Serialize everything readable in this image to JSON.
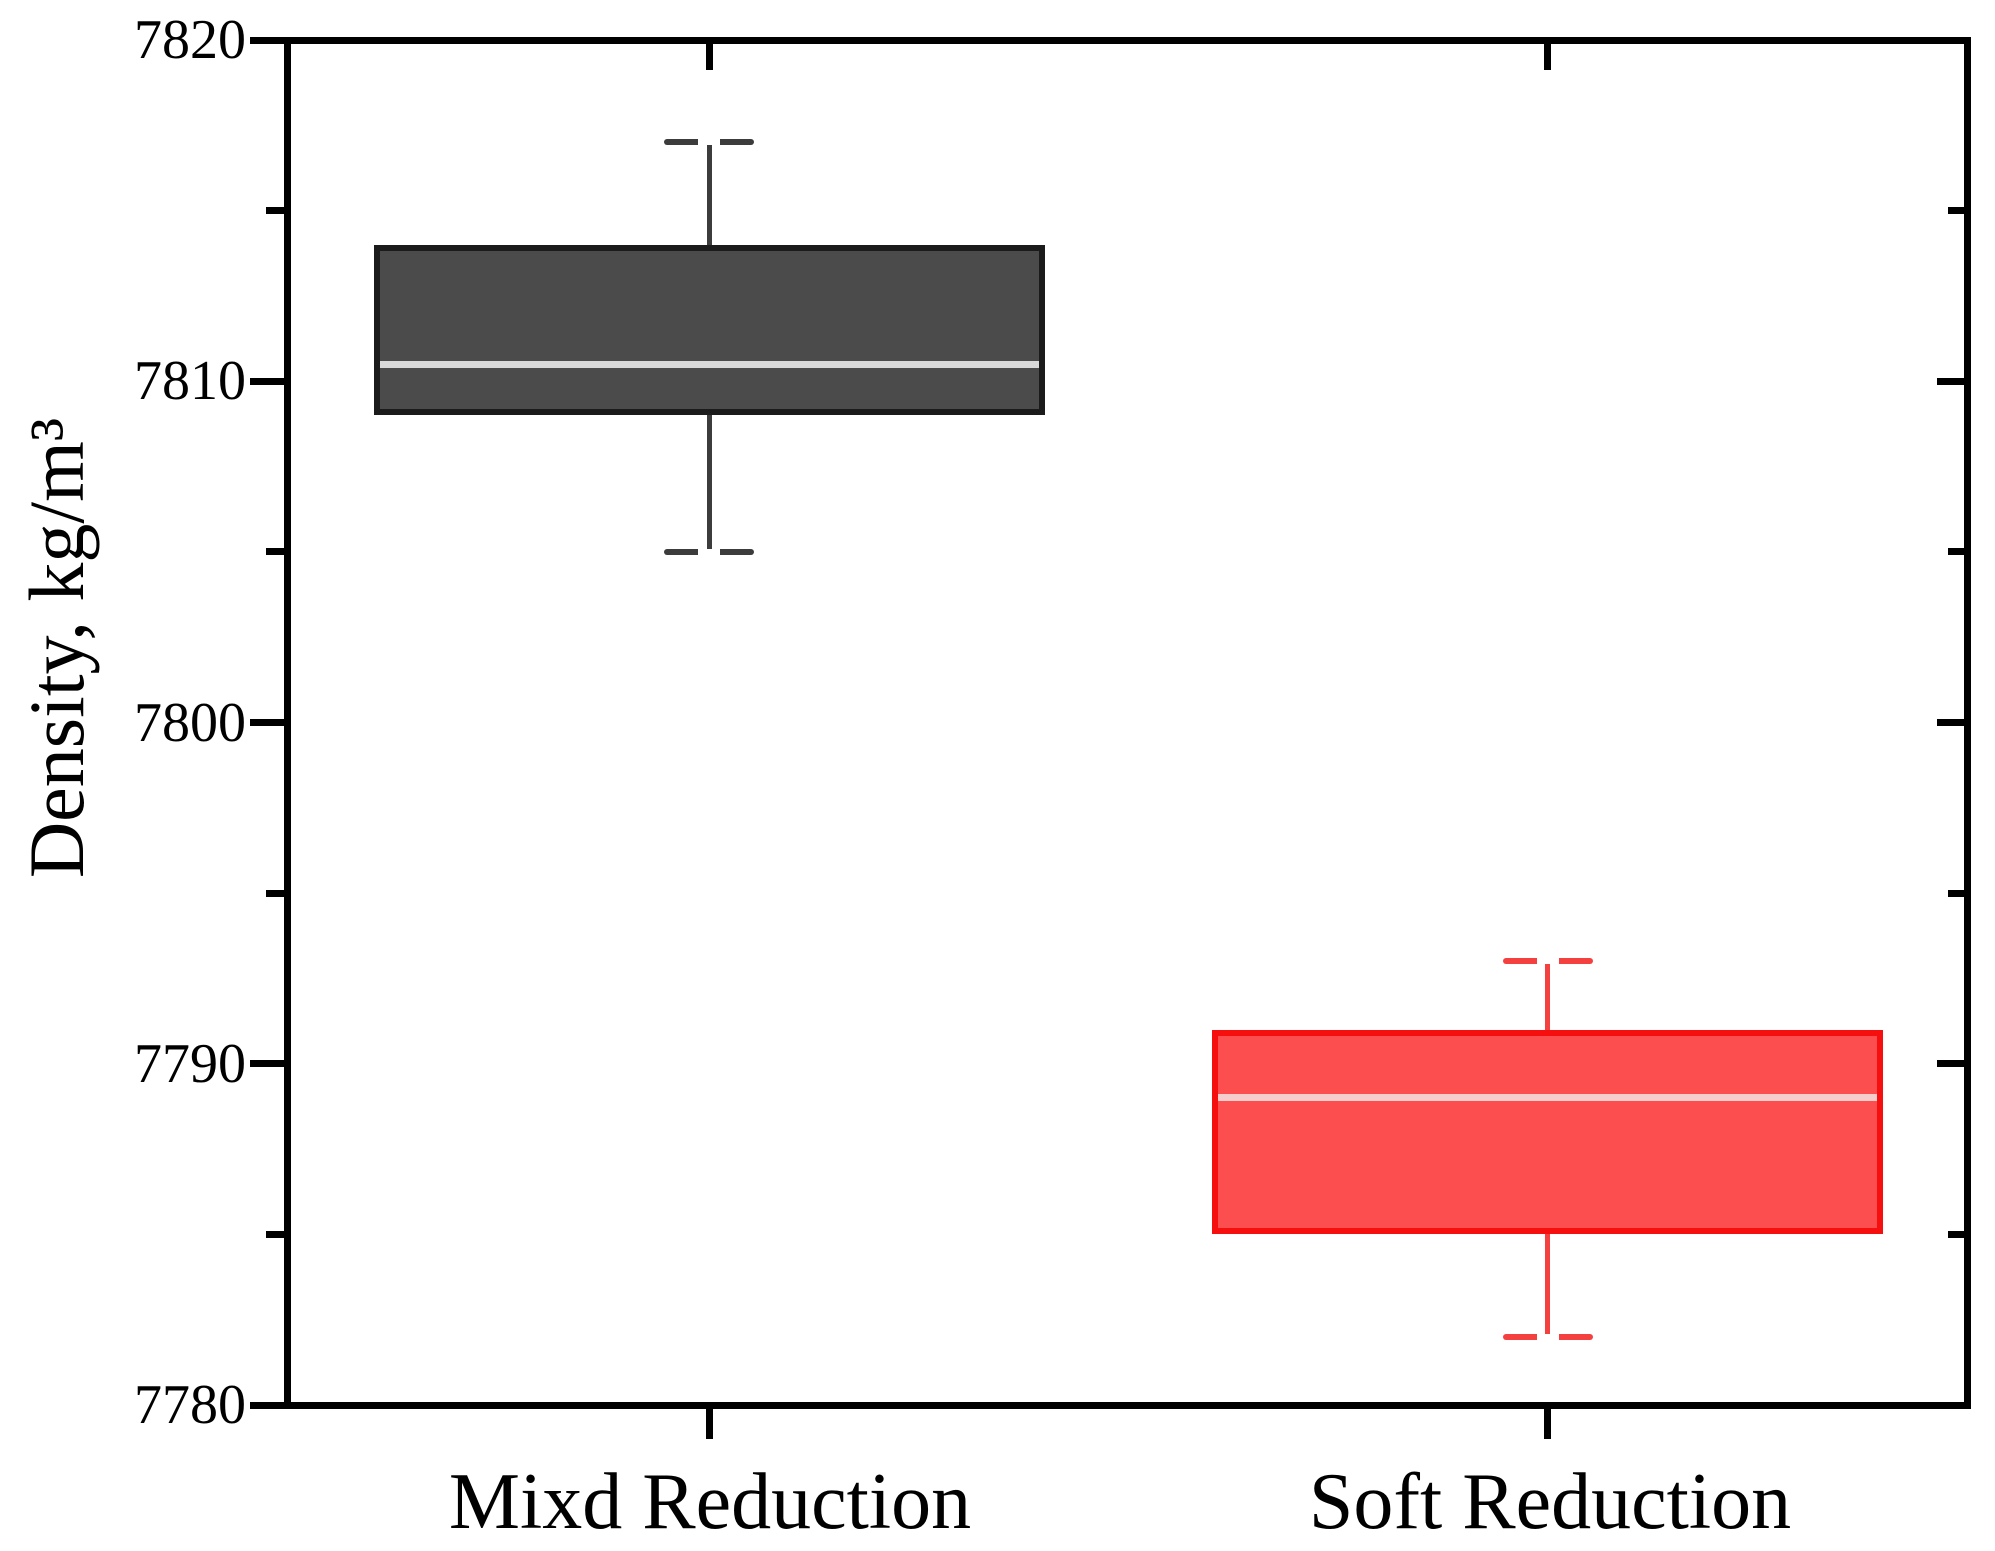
{
  "chart_data": {
    "type": "box",
    "title": "",
    "xlabel": "",
    "ylabel": "Density, kg/m³",
    "ylim": [
      7780,
      7820
    ],
    "yticks": [
      7780,
      7790,
      7800,
      7810,
      7820
    ],
    "ytick_labels": [
      "7780",
      "7790",
      "7800",
      "7810",
      "7820"
    ],
    "yminor_step": 5,
    "grid": false,
    "legend": "none",
    "categories": [
      "Mixd Reduction",
      "Soft Reduction"
    ],
    "series": [
      {
        "name": "Mixd Reduction",
        "whisker_low": 7805,
        "q1": 7809,
        "median": 7810.5,
        "q3": 7814,
        "whisker_high": 7817,
        "fill_color": "#4b4b4b",
        "border_color": "#1b1b1b",
        "median_color": "#d9d9d9",
        "whisker_color": "#3c3c3c",
        "cap_notch_color": "#ffffff"
      },
      {
        "name": "Soft Reduction",
        "whisker_low": 7782,
        "q1": 7785,
        "median": 7789,
        "q3": 7791,
        "whisker_high": 7793,
        "fill_color": "#fc4e4e",
        "border_color": "#f60f0f",
        "median_color": "#f6cdcd",
        "whisker_color": "#f54040",
        "cap_notch_color": "#ffffff"
      }
    ],
    "axis_color": "#000000",
    "background_color": "#ffffff"
  }
}
